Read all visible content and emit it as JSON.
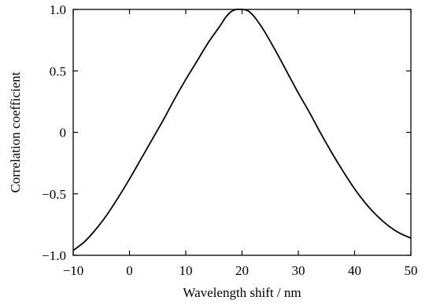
{
  "chart_data": {
    "type": "line",
    "title": "",
    "xlabel": "Wavelength shift / nm",
    "ylabel": "Correlation coefficient",
    "xlim": [
      -10,
      50
    ],
    "ylim": [
      -1.0,
      1.0
    ],
    "x_ticks": [
      -10,
      0,
      10,
      20,
      30,
      40,
      50
    ],
    "x_tick_labels": [
      "−10",
      "0",
      "10",
      "20",
      "30",
      "40",
      "50"
    ],
    "y_ticks": [
      -1.0,
      -0.5,
      0,
      0.5,
      1.0
    ],
    "y_tick_labels": [
      "−1.0",
      "−0.5",
      "0",
      "0.5",
      "1.0"
    ],
    "grid": false,
    "legend": "none",
    "series": [
      {
        "color": "#000000",
        "x": [
          -10,
          -8,
          -6,
          -4,
          -2,
          0,
          2,
          4,
          6,
          8,
          10,
          12,
          14,
          16,
          17,
          18,
          19,
          20,
          21,
          22,
          23,
          24,
          26,
          28,
          30,
          32,
          34,
          36,
          38,
          40,
          42,
          44,
          46,
          48,
          50
        ],
        "y": [
          -0.96,
          -0.89,
          -0.79,
          -0.67,
          -0.53,
          -0.38,
          -0.22,
          -0.06,
          0.1,
          0.27,
          0.43,
          0.58,
          0.73,
          0.86,
          0.93,
          0.98,
          1.0,
          1.0,
          0.99,
          0.95,
          0.89,
          0.82,
          0.66,
          0.49,
          0.32,
          0.16,
          -0.01,
          -0.17,
          -0.32,
          -0.46,
          -0.58,
          -0.68,
          -0.76,
          -0.82,
          -0.86
        ]
      }
    ]
  }
}
